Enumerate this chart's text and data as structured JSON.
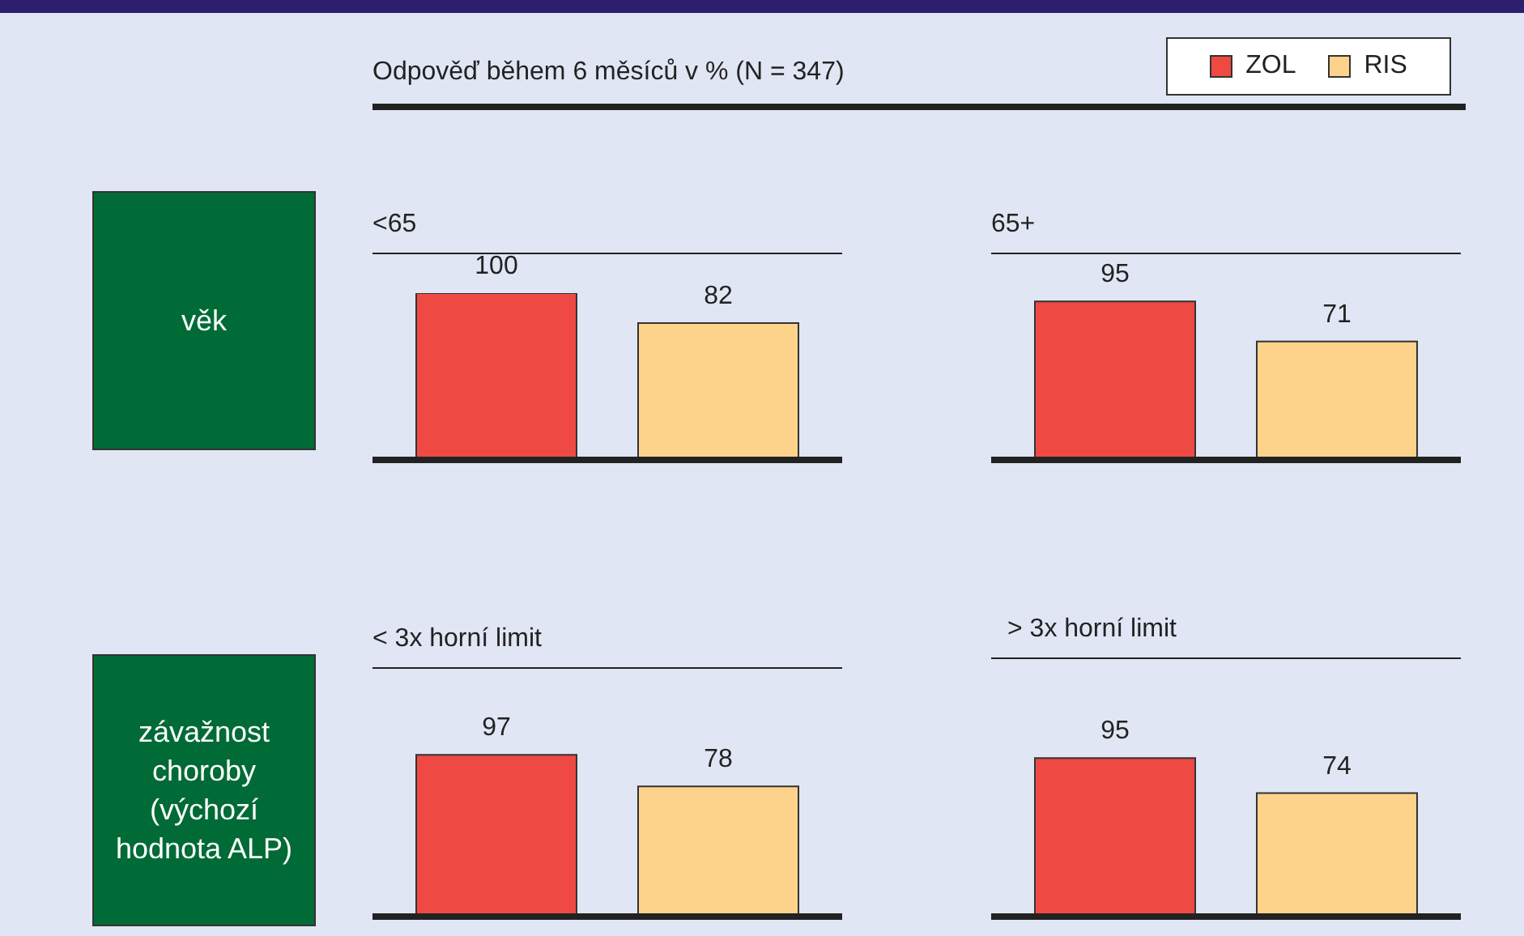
{
  "chart_data": [
    {
      "type": "other",
      "title": "Odpověď během 6 měsíců v % (N = 347)",
      "annotations": [
        "věk",
        "závažnost choroby (výchozí hodnota ALP)"
      ]
    },
    {
      "type": "bar",
      "title": "<65",
      "categories": [
        null
      ],
      "legend": "top right",
      "data_labels": true,
      "series": [
        {
          "name": "ZOL",
          "color": "#ee4a43",
          "values": [
            100
          ]
        },
        {
          "name": "RIS",
          "color": "#fdd38c",
          "values": [
            82
          ]
        }
      ]
    },
    {
      "type": "bar",
      "title": "65+",
      "categories": [
        null
      ],
      "data_labels": true,
      "series": [
        {
          "color": "#ee4a43",
          "values": [
            95
          ]
        },
        {
          "color": "#fdd38c",
          "values": [
            71
          ]
        }
      ]
    },
    {
      "type": "bar",
      "title": "< 3x horní limit",
      "categories": [
        null
      ],
      "data_labels": true,
      "series": [
        {
          "color": "#ee4a43",
          "values": [
            97
          ]
        },
        {
          "color": "#fdd38c",
          "values": [
            78
          ]
        }
      ]
    },
    {
      "type": "bar",
      "title": "> 3x horní limit",
      "categories": [
        null
      ],
      "data_labels": true,
      "series": [
        {
          "color": "#ee4a43",
          "values": [
            95
          ]
        },
        {
          "color": "#fdd38c",
          "values": [
            74
          ]
        }
      ]
    }
  ]
}
